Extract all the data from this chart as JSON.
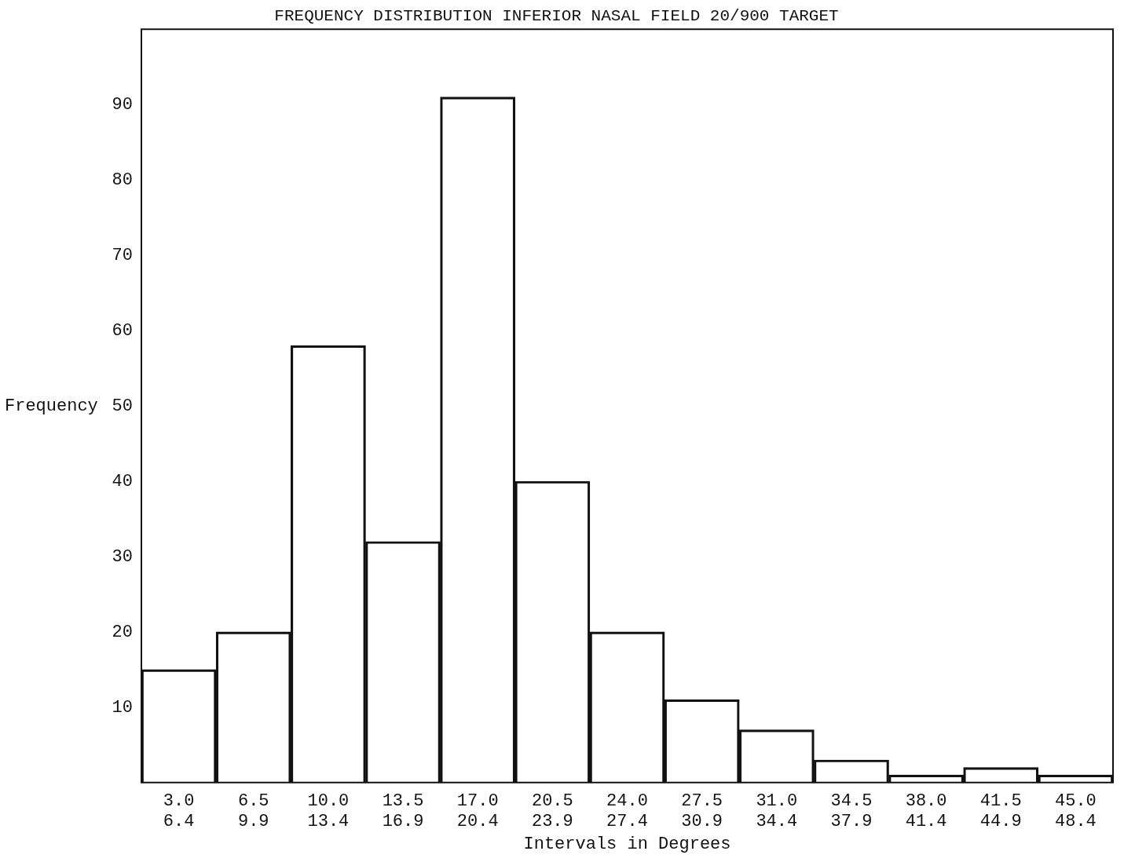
{
  "chart_data": {
    "type": "bar",
    "title": "FREQUENCY DISTRIBUTION INFERIOR NASAL FIELD 20/900 TARGET",
    "xlabel": "Intervals in Degrees",
    "ylabel": "Frequency",
    "categories": [
      "3.0\n6.4",
      "6.5\n9.9",
      "10.0\n13.4",
      "13.5\n16.9",
      "17.0\n20.4",
      "20.5\n23.9",
      "24.0\n27.4",
      "27.5\n30.9",
      "31.0\n34.4",
      "34.5\n37.9",
      "38.0\n41.4",
      "41.5\n44.9",
      "45.0\n48.4"
    ],
    "values": [
      15,
      20,
      58,
      32,
      91,
      40,
      20,
      11,
      7,
      3,
      1,
      2,
      1
    ],
    "color": "#111111",
    "ylim": [
      0,
      100
    ],
    "yticks": [
      10,
      20,
      30,
      40,
      50,
      60,
      70,
      80,
      90
    ]
  }
}
